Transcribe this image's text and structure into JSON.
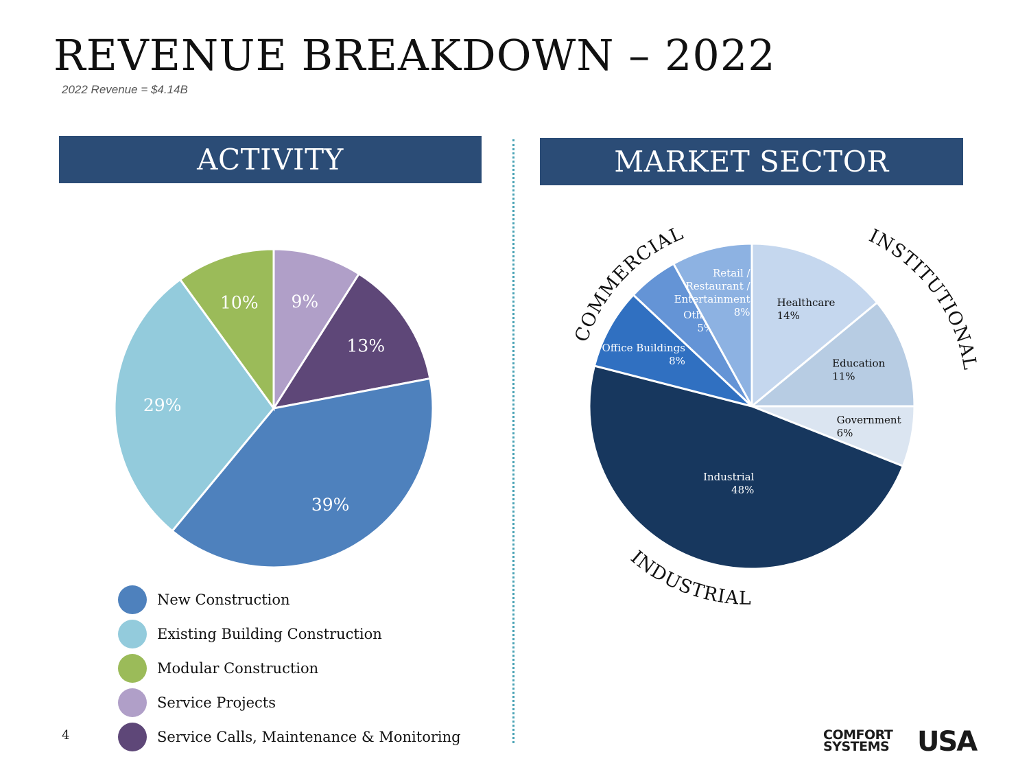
{
  "header": {
    "title": "REVENUE BREAKDOWN – 2022",
    "subtitle": "2022 Revenue = $4.14B"
  },
  "panels": {
    "activity_title": "ACTIVITY",
    "market_title": "MARKET SECTOR"
  },
  "group_labels": {
    "commercial": "COMMERCIAL",
    "institutional": "INSTITUTIONAL",
    "industrial": "INDUSTRIAL"
  },
  "footer": {
    "page_number": "4",
    "logo_line1": "COMFORT",
    "logo_line2": "SYSTEMS",
    "logo_usa": "USA"
  },
  "chart_data": [
    {
      "type": "pie",
      "title": "ACTIVITY",
      "legend_position": "bottom",
      "slices": [
        {
          "label": "Service Projects",
          "value": 9,
          "display": "9%",
          "color": "#b09fc8"
        },
        {
          "label": "Service Calls, Maintenance & Monitoring",
          "value": 13,
          "display": "13%",
          "color": "#5e4778"
        },
        {
          "label": "New Construction",
          "value": 39,
          "display": "39%",
          "color": "#4e81bd"
        },
        {
          "label": "Existing Building Construction",
          "value": 29,
          "display": "29%",
          "color": "#93cbdc"
        },
        {
          "label": "Modular Construction",
          "value": 10,
          "display": "10%",
          "color": "#9bbb59"
        }
      ],
      "legend_order": [
        "New Construction",
        "Existing Building Construction",
        "Modular Construction",
        "Service Projects",
        "Service Calls, Maintenance & Monitoring"
      ]
    },
    {
      "type": "pie",
      "title": "MARKET SECTOR",
      "slices": [
        {
          "label": "Healthcare",
          "value": 14,
          "display": "14%",
          "color": "#c5d7ee",
          "group": "INSTITUTIONAL"
        },
        {
          "label": "Education",
          "value": 11,
          "display": "11%",
          "color": "#b7cce3",
          "group": "INSTITUTIONAL"
        },
        {
          "label": "Government",
          "value": 6,
          "display": "6%",
          "color": "#dbe5f1",
          "group": "INSTITUTIONAL"
        },
        {
          "label": "Industrial",
          "value": 48,
          "display": "48%",
          "color": "#17375e",
          "group": "INDUSTRIAL"
        },
        {
          "label": "Office Buildings",
          "value": 8,
          "display": "8%",
          "color": "#3070c1",
          "group": "COMMERCIAL"
        },
        {
          "label": "Other",
          "value": 5,
          "display": "5%",
          "color": "#6494d6",
          "group": "COMMERCIAL"
        },
        {
          "label": "Retail / Restaurant / Entertainment",
          "value": 8,
          "display": "8%",
          "color": "#8db2e2",
          "group": "COMMERCIAL"
        }
      ]
    }
  ]
}
